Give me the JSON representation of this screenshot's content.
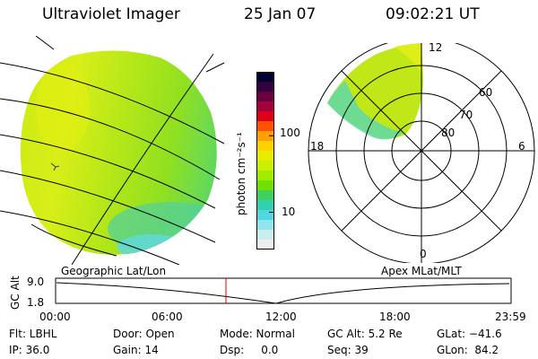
{
  "header": {
    "title": "Ultraviolet Imager",
    "date": "25 Jan 07",
    "time": "09:02:21 UT"
  },
  "colorbar": {
    "unit_label": "photon cm⁻²s⁻¹",
    "tick_100": "100",
    "tick_10": "10",
    "colors": [
      "#000033",
      "#33003f",
      "#6a0040",
      "#a4003a",
      "#dc001c",
      "#ff5000",
      "#ffa000",
      "#ffd000",
      "#e8ec00",
      "#c8f000",
      "#a0ec00",
      "#70e000",
      "#40d060",
      "#30d0b0",
      "#50d8e0",
      "#90e4ec",
      "#c8eef2",
      "#eeeeee"
    ]
  },
  "polar": {
    "lat_labels": [
      "60",
      "70",
      "80"
    ],
    "mlt_labels": {
      "top": "12",
      "left": "18",
      "right": "6",
      "bottom": "0"
    }
  },
  "timeline": {
    "left_caption": "Geographic Lat/Lon",
    "right_caption": "Apex MLat/MLT",
    "y_axis_label": "GC Alt",
    "y_max": "9.0",
    "y_min": "1.8",
    "time_ticks": [
      "00:00",
      "06:00",
      "12:00",
      "18:00",
      "23:59"
    ],
    "current_marker_color": "#e00000"
  },
  "status": {
    "flt": "Flt: LBHL",
    "ip": "IP: 36.0",
    "door": "Door: Open",
    "gain": "Gain: 14",
    "mode": "Mode: Normal",
    "dsp": "Dsp:     0.0",
    "gc_alt": "GC Alt: 5.2 Re",
    "seq": "Seq: 39",
    "glat": "GLat: −41.6",
    "glon": "GLon:  84.2"
  }
}
